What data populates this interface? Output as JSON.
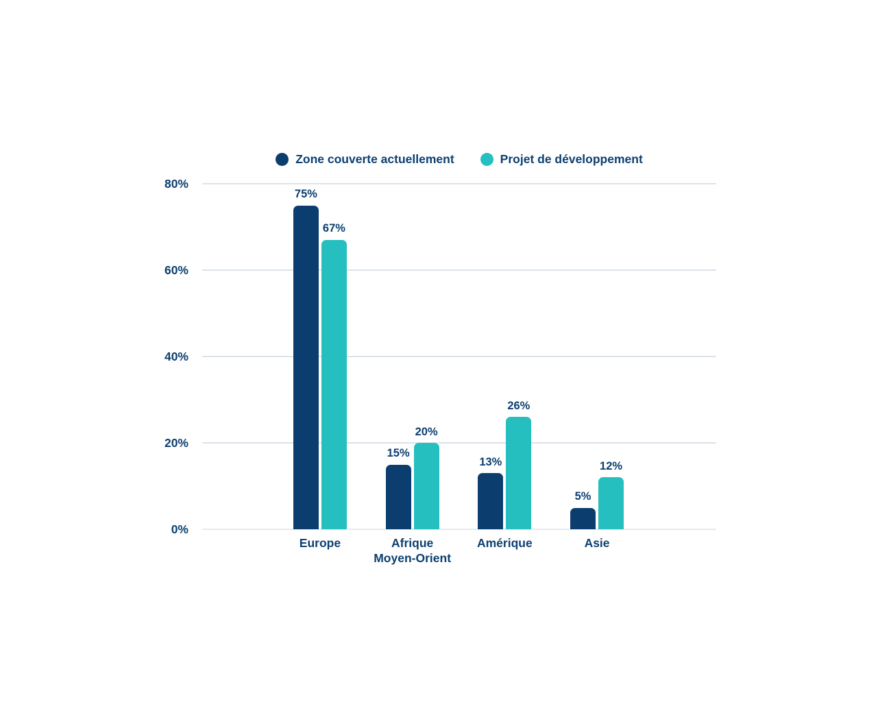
{
  "chart_data": {
    "type": "bar",
    "title": "",
    "xlabel": "",
    "ylabel": "",
    "categories": [
      "Europe",
      "Afrique\nMoyen-Orient",
      "Amérique",
      "Asie"
    ],
    "series": [
      {
        "name": "Zone couverte actuellement",
        "color": "#0b3e6f",
        "values": [
          75,
          15,
          13,
          5
        ],
        "value_labels": [
          "75%",
          "15%",
          "13%",
          "5%"
        ]
      },
      {
        "name": "Projet de développement",
        "color": "#26bfc0",
        "values": [
          67,
          20,
          26,
          12
        ],
        "value_labels": [
          "67%",
          "20%",
          "26%",
          "12%"
        ]
      }
    ],
    "ylim": [
      0,
      80
    ],
    "yticks": [
      {
        "value": 0,
        "label": "0%"
      },
      {
        "value": 20,
        "label": "20%"
      },
      {
        "value": 40,
        "label": "40%"
      },
      {
        "value": 60,
        "label": "60%"
      },
      {
        "value": 80,
        "label": "80%"
      }
    ],
    "grid": true,
    "legend_position": "top",
    "colors": {
      "axis_text": "#0c3f70",
      "value_label_text": "#0c3f70",
      "gridline": "#dce3eb",
      "baseline": "#e6eaf0",
      "background": "#ffffff"
    }
  }
}
